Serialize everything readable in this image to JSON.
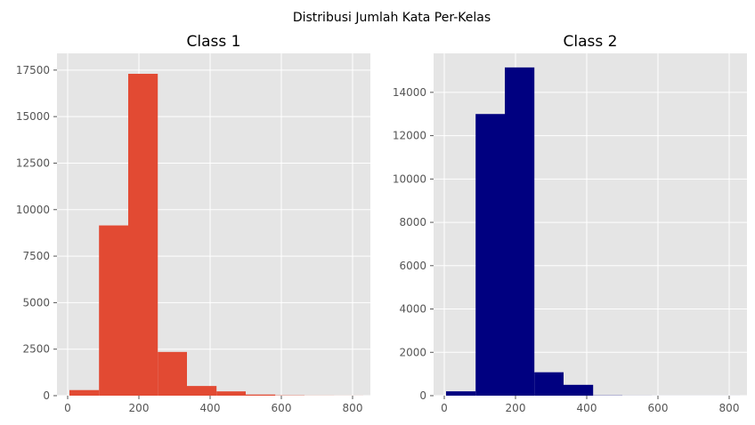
{
  "figure": {
    "suptitle": "Distribusi Jumlah Kata Per-Kelas"
  },
  "chart_data": [
    {
      "type": "bar",
      "title": "Class 1",
      "color": "#E24A33",
      "xlim": [
        -30,
        850
      ],
      "ylim": [
        0,
        18400
      ],
      "xticks": [
        0,
        200,
        400,
        600,
        800
      ],
      "yticks": [
        0,
        2500,
        5000,
        7500,
        10000,
        12500,
        15000,
        17500
      ],
      "bins": [
        {
          "x0": 5,
          "x1": 88,
          "value": 300
        },
        {
          "x0": 88,
          "x1": 170,
          "value": 9150
        },
        {
          "x0": 170,
          "x1": 253,
          "value": 17300
        },
        {
          "x0": 253,
          "x1": 335,
          "value": 2350
        },
        {
          "x0": 335,
          "x1": 418,
          "value": 520
        },
        {
          "x0": 418,
          "x1": 500,
          "value": 230
        },
        {
          "x0": 500,
          "x1": 583,
          "value": 60
        },
        {
          "x0": 583,
          "x1": 665,
          "value": 15
        },
        {
          "x0": 665,
          "x1": 748,
          "value": 5
        },
        {
          "x0": 748,
          "x1": 830,
          "value": 3
        }
      ],
      "grid": true
    },
    {
      "type": "bar",
      "title": "Class 2",
      "color": "#000080",
      "xlim": [
        -30,
        850
      ],
      "ylim": [
        0,
        15800
      ],
      "xticks": [
        0,
        200,
        400,
        600,
        800
      ],
      "yticks": [
        0,
        2000,
        4000,
        6000,
        8000,
        10000,
        12000,
        14000
      ],
      "bins": [
        {
          "x0": 5,
          "x1": 88,
          "value": 200
        },
        {
          "x0": 88,
          "x1": 170,
          "value": 13000
        },
        {
          "x0": 170,
          "x1": 253,
          "value": 15150
        },
        {
          "x0": 253,
          "x1": 335,
          "value": 1080
        },
        {
          "x0": 335,
          "x1": 418,
          "value": 500
        },
        {
          "x0": 418,
          "x1": 500,
          "value": 10
        },
        {
          "x0": 500,
          "x1": 583,
          "value": 3
        },
        {
          "x0": 583,
          "x1": 665,
          "value": 1
        },
        {
          "x0": 665,
          "x1": 748,
          "value": 1
        },
        {
          "x0": 748,
          "x1": 830,
          "value": 1
        }
      ],
      "grid": true
    }
  ]
}
